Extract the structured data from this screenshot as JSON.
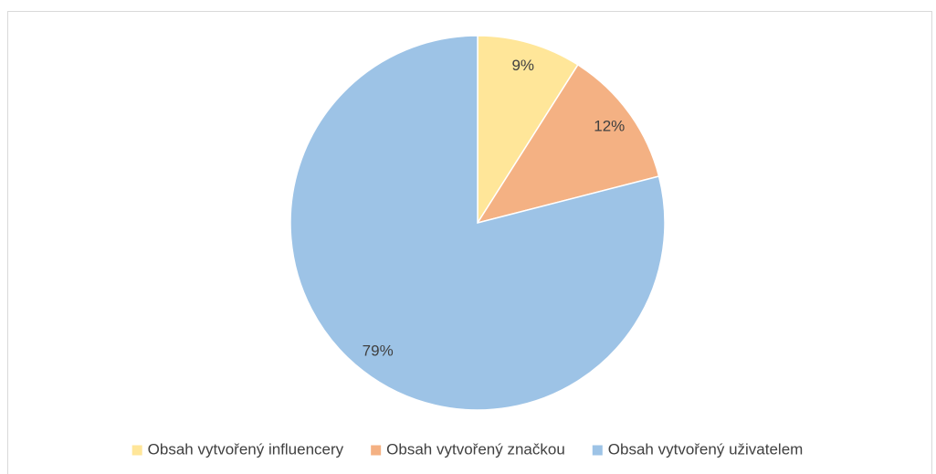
{
  "chart_data": {
    "type": "pie",
    "categories": [
      "Obsah vytvořený influencery",
      "Obsah vytvořený značkou",
      "Obsah vytvořený uživatelem"
    ],
    "values": [
      9,
      12,
      79
    ],
    "value_labels": [
      "9%",
      "12%",
      "79%"
    ],
    "colors": [
      "#FFE699",
      "#F4B183",
      "#9DC3E6"
    ],
    "legend": "bottom"
  }
}
